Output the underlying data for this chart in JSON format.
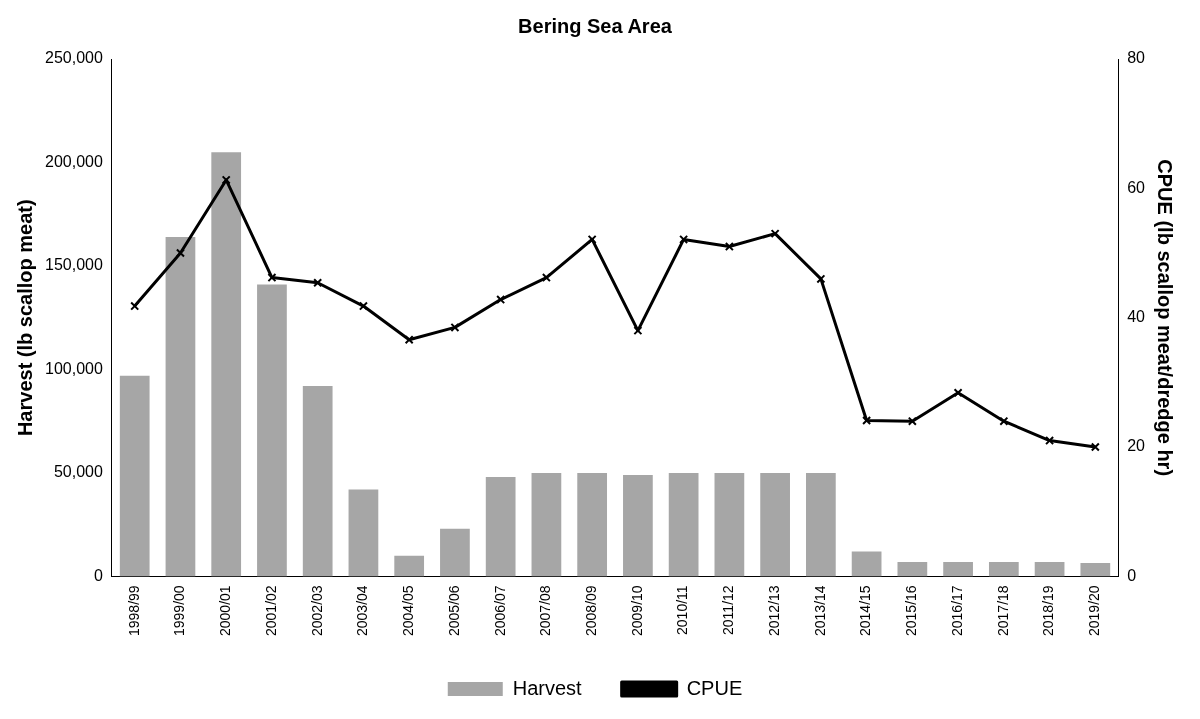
{
  "chart_data": {
    "type": "bar",
    "title": "Bering Sea Area",
    "ylabel": "Harvest (lb scallop meat)",
    "y2label": "CPUE (lb scallop meat/dredge hr)",
    "categories": [
      "1998/99",
      "1999/00",
      "2000/01",
      "2001/02",
      "2002/03",
      "2003/04",
      "2004/05",
      "2005/06",
      "2006/07",
      "2007/08",
      "2008/09",
      "2009/10",
      "2010/11",
      "2011/12",
      "2012/13",
      "2013/14",
      "2014/15",
      "2015/16",
      "2016/17",
      "2017/18",
      "2018/19",
      "2019/20"
    ],
    "series": [
      {
        "name": "Harvest",
        "color": "#a6a6a6",
        "values": [
          97000,
          164000,
          205000,
          141000,
          92000,
          42000,
          10000,
          23000,
          48000,
          50000,
          50000,
          49000,
          50000,
          50000,
          50000,
          50000,
          12000,
          7000,
          7000,
          7000,
          7000,
          6500
        ]
      },
      {
        "name": "CPUE",
        "type": "line",
        "axis": "y2",
        "color": "#000000",
        "marker": "cross",
        "values": [
          41.8,
          50,
          61.3,
          46.2,
          45.4,
          41.8,
          36.6,
          38.5,
          42.8,
          46.2,
          52.1,
          38,
          52.1,
          51,
          53,
          46,
          24.1,
          24,
          28.4,
          24,
          21,
          20
        ]
      }
    ],
    "ylim": [
      0,
      250000
    ],
    "yticks": [
      {
        "value": 0,
        "label": "0"
      },
      {
        "value": 50000,
        "label": "50,000"
      },
      {
        "value": 100000,
        "label": "100,000"
      },
      {
        "value": 150000,
        "label": "150,000"
      },
      {
        "value": 200000,
        "label": "200,000"
      },
      {
        "value": 250000,
        "label": "250,000"
      }
    ],
    "y2lim": [
      0,
      80
    ],
    "y2ticks": [
      0,
      20,
      40,
      60,
      80
    ],
    "legend": "bottom"
  }
}
